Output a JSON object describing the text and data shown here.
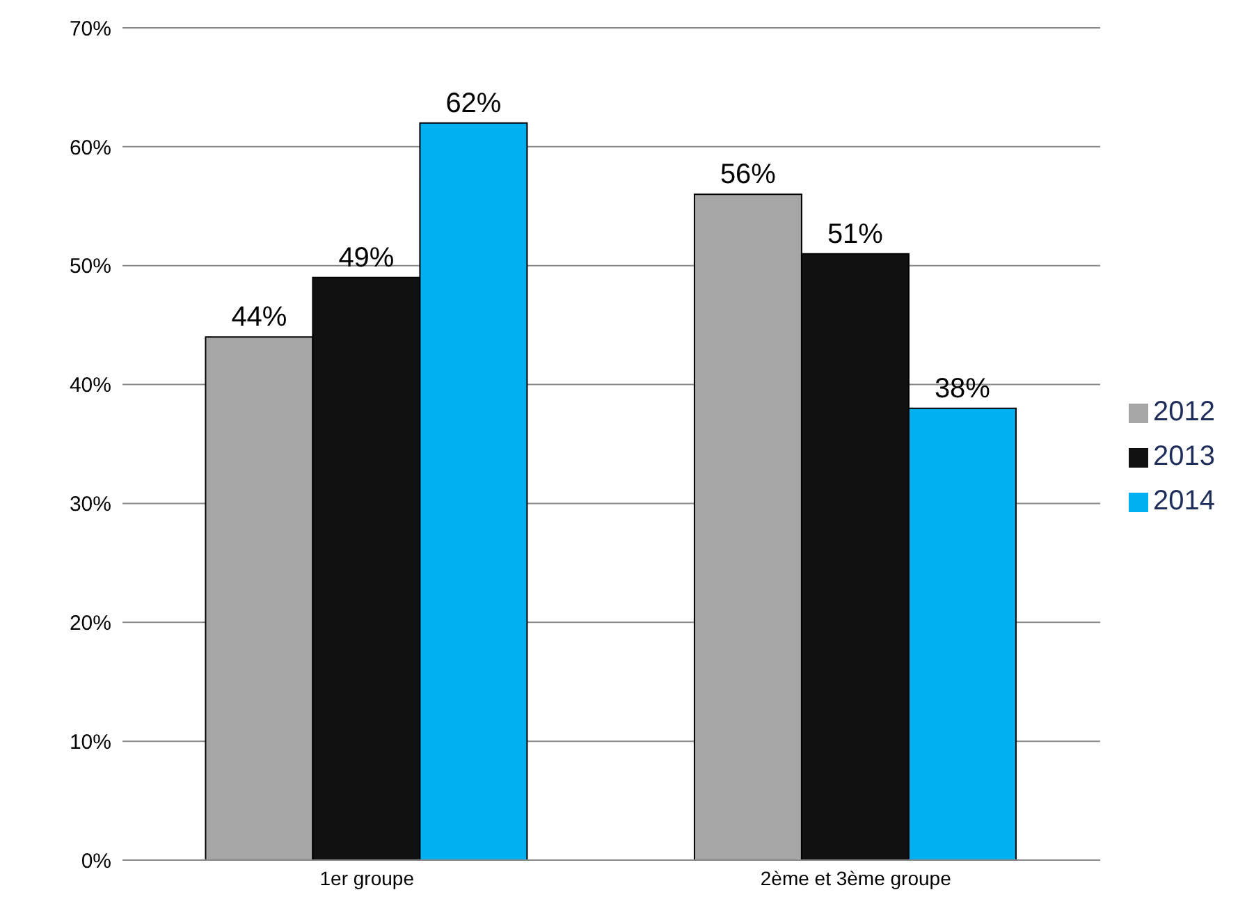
{
  "chart_data": {
    "type": "bar",
    "categories": [
      "1er groupe",
      "2ème et 3ème groupe"
    ],
    "series": [
      {
        "name": "2012",
        "color": "#a6a6a6",
        "values": [
          44,
          56
        ],
        "value_labels": [
          "44%",
          "56%"
        ]
      },
      {
        "name": "2013",
        "color": "#111111",
        "values": [
          49,
          51
        ],
        "value_labels": [
          "49%",
          "51%"
        ]
      },
      {
        "name": "2014",
        "color": "#00b0f0",
        "values": [
          62,
          38
        ],
        "value_labels": [
          "62%",
          "38%"
        ]
      }
    ],
    "ylim": [
      0,
      70
    ],
    "yticks": [
      {
        "value": 0,
        "label": "0%"
      },
      {
        "value": 10,
        "label": "10%"
      },
      {
        "value": 20,
        "label": "20%"
      },
      {
        "value": 30,
        "label": "30%"
      },
      {
        "value": 40,
        "label": "40%"
      },
      {
        "value": 50,
        "label": "50%"
      },
      {
        "value": 60,
        "label": "60%"
      },
      {
        "value": 70,
        "label": "70%"
      }
    ],
    "grid": "y",
    "legend": "right"
  }
}
